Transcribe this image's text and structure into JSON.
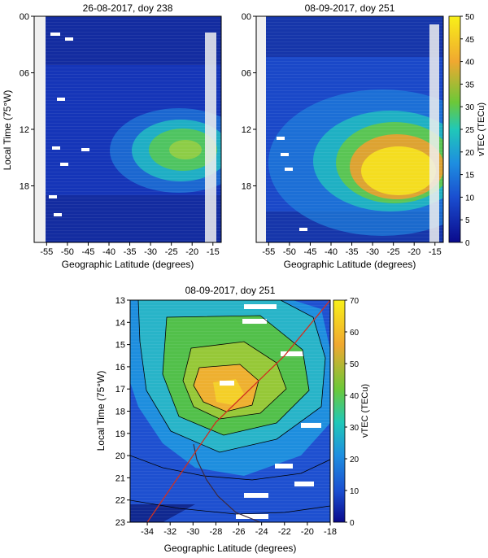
{
  "chart_data": [
    {
      "type": "heatmap",
      "title": "26-08-2017, doy 238",
      "xlabel": "Geographic Latitude (degrees)",
      "ylabel": "Local Time (75°W)",
      "x_ticks": [
        -55,
        -50,
        -45,
        -40,
        -35,
        -30,
        -25,
        -20,
        -15
      ],
      "y_ticks": [
        0,
        6,
        12,
        18
      ],
      "y_tick_labels": [
        "00",
        "06",
        "12",
        "18"
      ],
      "xlim": [
        -58,
        -13
      ],
      "ylim": [
        0,
        24
      ],
      "y_reversed": true,
      "colorbar_range": [
        0,
        50
      ],
      "peak_vtec": 25,
      "peak_location": {
        "lat": -24,
        "local_time": 14.5
      },
      "background_vtec": 5
    },
    {
      "type": "heatmap",
      "title": "08-09-2017, doy 251",
      "xlabel": "Geographic Latitude (degrees)",
      "ylabel": "",
      "x_ticks": [
        -55,
        -50,
        -45,
        -40,
        -35,
        -30,
        -25,
        -20,
        -15
      ],
      "y_ticks": [
        0,
        6,
        12,
        18
      ],
      "y_tick_labels": [
        "00",
        "06",
        "12",
        "18"
      ],
      "xlim": [
        -58,
        -13
      ],
      "ylim": [
        0,
        24
      ],
      "y_reversed": true,
      "colorbar": {
        "label": "vTEC (TECu)",
        "min": 0,
        "max": 50,
        "ticks": [
          0,
          5,
          10,
          15,
          20,
          25,
          30,
          35,
          40,
          45,
          50
        ]
      },
      "peak_vtec": 45,
      "peak_location": {
        "lat": -26,
        "local_time": 17.5
      },
      "background_vtec": 7
    },
    {
      "type": "heatmap",
      "title": "08-09-2017, doy 251",
      "xlabel": "Geographic Latitude (degrees)",
      "ylabel": "Local Time (75°W)",
      "x_ticks": [
        -34,
        -32,
        -30,
        -28,
        -26,
        -24,
        -22,
        -20,
        -18
      ],
      "y_ticks": [
        13,
        14,
        15,
        16,
        17,
        18,
        19,
        20,
        21,
        22,
        23
      ],
      "xlim": [
        -35.5,
        -18
      ],
      "ylim": [
        13,
        23
      ],
      "y_reversed": true,
      "contours": true,
      "contour_levels": [
        10,
        20,
        30,
        40,
        50,
        60
      ],
      "colorbar": {
        "label": "vTEC (TECu)",
        "min": 0,
        "max": 70,
        "ticks": [
          0,
          10,
          20,
          30,
          40,
          50,
          60,
          70
        ]
      },
      "peak_vtec": 65,
      "peak_location": {
        "lat": -26.5,
        "local_time": 17.6
      },
      "track_line": {
        "color": "#d03020",
        "lat": [
          -34,
          -28,
          -22,
          -18
        ],
        "local_time": [
          23,
          18.5,
          15.5,
          13
        ]
      }
    }
  ]
}
